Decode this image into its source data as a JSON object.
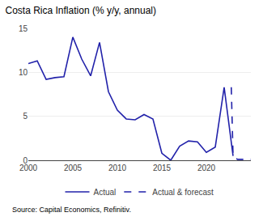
{
  "chart_data": {
    "type": "line",
    "title": "Costa Rica Inflation (% y/y, annual)",
    "annotations": [
      "Source: Capital Economics, Refinitiv."
    ],
    "series": [
      {
        "name": "Actual",
        "color": "#2222AA",
        "line_style": "solid",
        "x": [
          2000,
          2001,
          2002,
          2003,
          2004,
          2005,
          2006,
          2007,
          2008,
          2009,
          2010,
          2011,
          2012,
          2013,
          2014,
          2015,
          2016,
          2017,
          2018,
          2019,
          2020,
          2021,
          2022,
          2023
        ],
        "values": [
          11.0,
          11.3,
          9.2,
          9.4,
          9.5,
          14.0,
          11.5,
          9.6,
          13.4,
          7.8,
          5.7,
          4.7,
          4.6,
          5.2,
          4.7,
          0.8,
          0.0,
          1.6,
          2.2,
          2.1,
          0.9,
          1.5,
          8.3,
          0.5
        ]
      },
      {
        "name": "Actual & forecast",
        "color": "#2222AA",
        "line_style": "dashed",
        "x": [
          2022.8,
          2023,
          2023.5,
          2024,
          2025
        ],
        "values": [
          8.3,
          0.5,
          0.1,
          0.1,
          0.1
        ]
      }
    ],
    "xlim": [
      2000,
      2025
    ],
    "xticks": [
      2000,
      2005,
      2010,
      2015,
      2020
    ],
    "ylim": [
      0,
      15
    ],
    "yticks": [
      0,
      5,
      10,
      15
    ],
    "grid": "y",
    "legend": "bottom"
  }
}
